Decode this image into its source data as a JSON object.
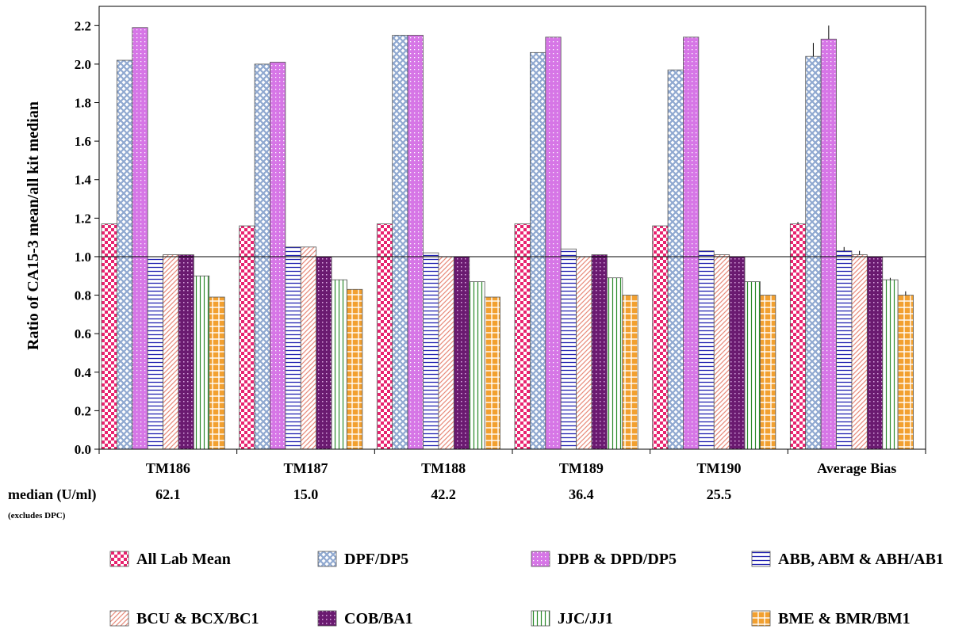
{
  "chart_data": {
    "type": "bar",
    "ylabel": "Ratio of CA15-3 mean/all kit median",
    "ylim": [
      0,
      2.3
    ],
    "yticks": [
      "0.0",
      "0.2",
      "0.4",
      "0.6",
      "0.8",
      "1.0",
      "1.2",
      "1.4",
      "1.6",
      "1.8",
      "2.0",
      "2.2"
    ],
    "reference_line": 1.0,
    "categories": [
      "TM186",
      "TM187",
      "TM188",
      "TM189",
      "TM190",
      "Average Bias"
    ],
    "median_row": {
      "label": "median (U/ml)",
      "note": "(excludes DPC)",
      "values": [
        "62.1",
        "15.0",
        "42.2",
        "36.4",
        "25.5",
        ""
      ]
    },
    "legend_position": "bottom",
    "series": [
      {
        "name": "All Lab Mean",
        "color": "#e8236f",
        "pattern": "checker",
        "values": [
          1.17,
          1.16,
          1.17,
          1.17,
          1.16,
          1.17
        ],
        "error_top": [
          null,
          null,
          null,
          null,
          null,
          1.18
        ]
      },
      {
        "name": "DPF/DP5",
        "color": "#8fa8d0",
        "pattern": "crosshatch",
        "values": [
          2.02,
          2.0,
          2.15,
          2.06,
          1.97,
          2.04
        ],
        "error_top": [
          null,
          null,
          null,
          null,
          null,
          2.11
        ]
      },
      {
        "name": "DPB & DPD/DP5",
        "color": "#d676e6",
        "pattern": "dots",
        "values": [
          2.19,
          2.01,
          2.15,
          2.14,
          2.14,
          2.13
        ],
        "error_top": [
          null,
          null,
          null,
          null,
          null,
          2.2
        ]
      },
      {
        "name": "ABB, ABM & ABH/AB1",
        "color": "#2020b0",
        "pattern": "hlines",
        "values": [
          1.0,
          1.05,
          1.02,
          1.04,
          1.03,
          1.03
        ],
        "error_top": [
          null,
          null,
          null,
          null,
          null,
          1.05
        ]
      },
      {
        "name": "BCU & BCX/BC1",
        "color": "#e88a7a",
        "pattern": "diagonal",
        "values": [
          1.01,
          1.05,
          1.0,
          1.0,
          1.01,
          1.01
        ],
        "error_top": [
          null,
          null,
          null,
          null,
          null,
          1.03
        ]
      },
      {
        "name": "COB/BA1",
        "color": "#6a1a70",
        "pattern": "darkdots",
        "values": [
          1.01,
          1.0,
          1.0,
          1.01,
          1.0,
          1.0
        ],
        "error_top": [
          null,
          null,
          null,
          null,
          null,
          null
        ]
      },
      {
        "name": "JJC/JJ1",
        "color": "#2a8a2a",
        "pattern": "vlines",
        "values": [
          0.9,
          0.88,
          0.87,
          0.89,
          0.87,
          0.88
        ],
        "error_top": [
          null,
          null,
          null,
          null,
          null,
          0.89
        ]
      },
      {
        "name": "BME & BMR/BM1",
        "color": "#f2a030",
        "pattern": "grid",
        "values": [
          0.79,
          0.83,
          0.79,
          0.8,
          0.8,
          0.8
        ],
        "error_top": [
          null,
          null,
          null,
          null,
          null,
          0.82
        ]
      }
    ]
  }
}
